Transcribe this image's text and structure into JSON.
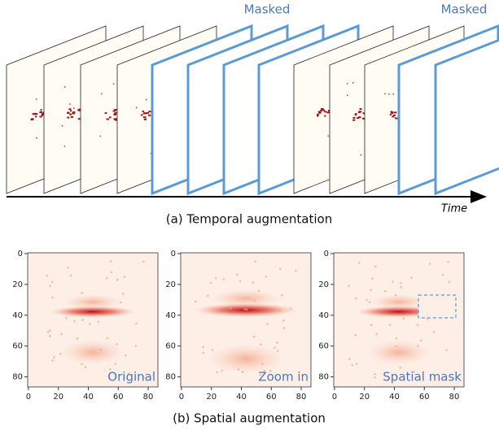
{
  "top": {
    "masked_labels": [
      "Masked",
      "Masked"
    ],
    "time_label": "Time",
    "caption": "(a) Temporal augmentation"
  },
  "panels": [
    {
      "label": "Original",
      "xlim": [
        -0.5,
        86.5
      ],
      "ylim": [
        -0.5,
        86.5
      ],
      "xticks": [
        0,
        20,
        40,
        60,
        80
      ],
      "yticks": [
        0,
        20,
        40,
        60,
        80
      ]
    },
    {
      "label": "Zoom in",
      "xlim": [
        -0.5,
        86.5
      ],
      "ylim": [
        -0.5,
        86.5
      ],
      "xticks": [
        0,
        20,
        40,
        60,
        80
      ],
      "yticks": [
        0,
        20,
        40,
        60,
        80
      ]
    },
    {
      "label": "Spatial mask",
      "xlim": [
        -0.5,
        86.5
      ],
      "ylim": [
        -0.5,
        86.5
      ],
      "xticks": [
        0,
        20,
        40,
        60,
        80
      ],
      "yticks": [
        0,
        20,
        40,
        60,
        80
      ]
    }
  ],
  "bottom": {
    "caption": "(b) Spatial augmentation"
  }
}
